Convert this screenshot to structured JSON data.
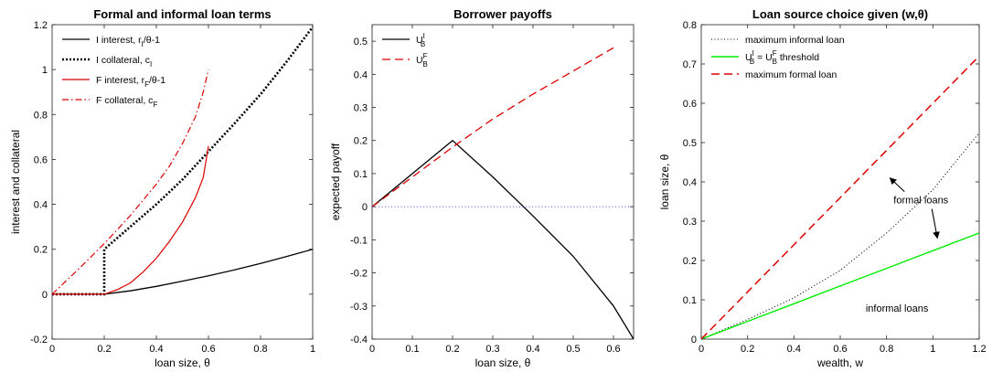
{
  "chart_data": [
    {
      "type": "line",
      "title": "Formal and informal loan terms",
      "xlabel": "loan size, θ",
      "ylabel": "interest and collateral",
      "xlim": [
        0,
        1
      ],
      "ylim": [
        -0.2,
        1.2
      ],
      "xticks": [
        "0",
        "0.2",
        "0.4",
        "0.6",
        "0.8",
        "1"
      ],
      "yticks": [
        "-0.2",
        "0",
        "0.2",
        "0.4",
        "0.6",
        "0.8",
        "1",
        "1.2"
      ],
      "legend_position": "top-left",
      "series": [
        {
          "name": "I interest, r_I/θ-1",
          "legend": {
            "text": "I interest, r",
            "sub": "I",
            "after": "/θ-1"
          },
          "color": "#000000",
          "style": "solid",
          "width": 1.3,
          "points": [
            [
              0,
              0
            ],
            [
              0.2,
              0
            ],
            [
              0.3,
              0.015
            ],
            [
              0.4,
              0.035
            ],
            [
              0.5,
              0.058
            ],
            [
              0.6,
              0.082
            ],
            [
              0.7,
              0.108
            ],
            [
              0.8,
              0.137
            ],
            [
              0.9,
              0.168
            ],
            [
              1,
              0.2
            ]
          ]
        },
        {
          "name": "I collateral, c_I",
          "legend": {
            "text": "I collateral, c",
            "sub": "I",
            "after": ""
          },
          "color": "#000000",
          "style": "dotted",
          "width": 2.6,
          "points": [
            [
              0,
              0
            ],
            [
              0.2,
              0
            ],
            [
              0.2,
              0.2
            ],
            [
              0.3,
              0.3
            ],
            [
              0.4,
              0.4
            ],
            [
              0.5,
              0.51
            ],
            [
              0.6,
              0.635
            ],
            [
              0.7,
              0.76
            ],
            [
              0.8,
              0.89
            ],
            [
              0.9,
              1.035
            ],
            [
              1,
              1.19
            ]
          ]
        },
        {
          "name": "F interest, r_F/θ-1",
          "legend": {
            "text": "F interest, r",
            "sub": "F",
            "after": "/θ-1"
          },
          "color": "#dd0000",
          "style": "solid",
          "width": 1.2,
          "points": [
            [
              0,
              0
            ],
            [
              0.2,
              0
            ],
            [
              0.25,
              0.02
            ],
            [
              0.3,
              0.05
            ],
            [
              0.35,
              0.1
            ],
            [
              0.4,
              0.16
            ],
            [
              0.45,
              0.235
            ],
            [
              0.5,
              0.32
            ],
            [
              0.55,
              0.43
            ],
            [
              0.58,
              0.52
            ],
            [
              0.6,
              0.66
            ]
          ]
        },
        {
          "name": "F collateral, c_F",
          "legend": {
            "text": "F collateral, c",
            "sub": "F",
            "after": ""
          },
          "color": "#dd0000",
          "style": "dashdot",
          "width": 1.2,
          "points": [
            [
              0,
              0
            ],
            [
              0.1,
              0.11
            ],
            [
              0.2,
              0.225
            ],
            [
              0.3,
              0.35
            ],
            [
              0.4,
              0.49
            ],
            [
              0.45,
              0.57
            ],
            [
              0.5,
              0.67
            ],
            [
              0.55,
              0.79
            ],
            [
              0.58,
              0.9
            ],
            [
              0.6,
              1.0
            ]
          ]
        }
      ]
    },
    {
      "type": "line",
      "title": "Borrower payoffs",
      "xlabel": "loan size, θ",
      "ylabel": "expected payoff",
      "xlim": [
        0,
        0.65
      ],
      "ylim": [
        -0.4,
        0.55
      ],
      "xticks": [
        "0",
        "0.1",
        "0.2",
        "0.3",
        "0.4",
        "0.5",
        "0.6"
      ],
      "yticks": [
        "-0.4",
        "-0.3",
        "-0.2",
        "-0.1",
        "0",
        "0.1",
        "0.2",
        "0.3",
        "0.4",
        "0.5"
      ],
      "legend_position": "top-left",
      "series": [
        {
          "name": "U_B^I",
          "legend": {
            "text": "U",
            "sub": "B",
            "sup": "I"
          },
          "color": "#000000",
          "style": "solid",
          "width": 1.3,
          "points": [
            [
              0,
              0
            ],
            [
              0.2,
              0.2
            ],
            [
              0.3,
              0.09
            ],
            [
              0.4,
              -0.028
            ],
            [
              0.5,
              -0.15
            ],
            [
              0.6,
              -0.3
            ],
            [
              0.65,
              -0.4
            ]
          ]
        },
        {
          "name": "U_B^F",
          "legend": {
            "text": "U",
            "sub": "B",
            "sup": "F"
          },
          "color": "#dd0000",
          "style": "dashed",
          "width": 1.3,
          "points": [
            [
              0,
              0
            ],
            [
              0.2,
              0.18
            ],
            [
              0.3,
              0.265
            ],
            [
              0.4,
              0.34
            ],
            [
              0.5,
              0.41
            ],
            [
              0.6,
              0.48
            ]
          ]
        },
        {
          "name": "zero line",
          "color": "#3a3acc",
          "style": "finedot",
          "width": 0.9,
          "points": [
            [
              0,
              0
            ],
            [
              0.65,
              0
            ]
          ]
        }
      ]
    },
    {
      "type": "line",
      "title": "Loan source choice given (w,θ)",
      "xlabel": "wealth, w",
      "ylabel": "loan size, θ",
      "xlim": [
        0,
        1.2
      ],
      "ylim": [
        0,
        0.8
      ],
      "xticks": [
        "0",
        "0.2",
        "0.4",
        "0.6",
        "0.8",
        "1",
        "1.2"
      ],
      "yticks": [
        "0",
        "0.1",
        "0.2",
        "0.3",
        "0.4",
        "0.5",
        "0.6",
        "0.7",
        "0.8"
      ],
      "legend_position": "top-left",
      "series": [
        {
          "name": "maximum informal loan",
          "legend": {
            "text": "maximum informal loan"
          },
          "color": "#000000",
          "style": "finedot",
          "width": 1.1,
          "points": [
            [
              0,
              0
            ],
            [
              0.2,
              0.05
            ],
            [
              0.4,
              0.105
            ],
            [
              0.6,
              0.175
            ],
            [
              0.8,
              0.27
            ],
            [
              1.0,
              0.38
            ],
            [
              1.2,
              0.525
            ]
          ]
        },
        {
          "name": "U_B^I = U_B^F threshold",
          "legend": {
            "text": "U",
            "sub": "B",
            "sup": "I",
            "after": " = U",
            "sub2": "B",
            "sup2": "F",
            "after2": " threshold"
          },
          "color": "#00ee00",
          "style": "solid",
          "width": 1.4,
          "points": [
            [
              0,
              0
            ],
            [
              0.2,
              0.045
            ],
            [
              0.4,
              0.09
            ],
            [
              0.6,
              0.135
            ],
            [
              0.8,
              0.18
            ],
            [
              1.0,
              0.225
            ],
            [
              1.2,
              0.27
            ]
          ]
        },
        {
          "name": "maximum formal loan",
          "legend": {
            "text": "maximum formal loan"
          },
          "color": "#dd0000",
          "style": "dashed",
          "width": 1.5,
          "points": [
            [
              0,
              0
            ],
            [
              1.2,
              0.72
            ]
          ]
        }
      ],
      "annotations": [
        {
          "text": "formal loans",
          "x": 0.83,
          "y": 0.345
        },
        {
          "text": "informal loans",
          "x": 0.71,
          "y": 0.07
        }
      ]
    }
  ]
}
